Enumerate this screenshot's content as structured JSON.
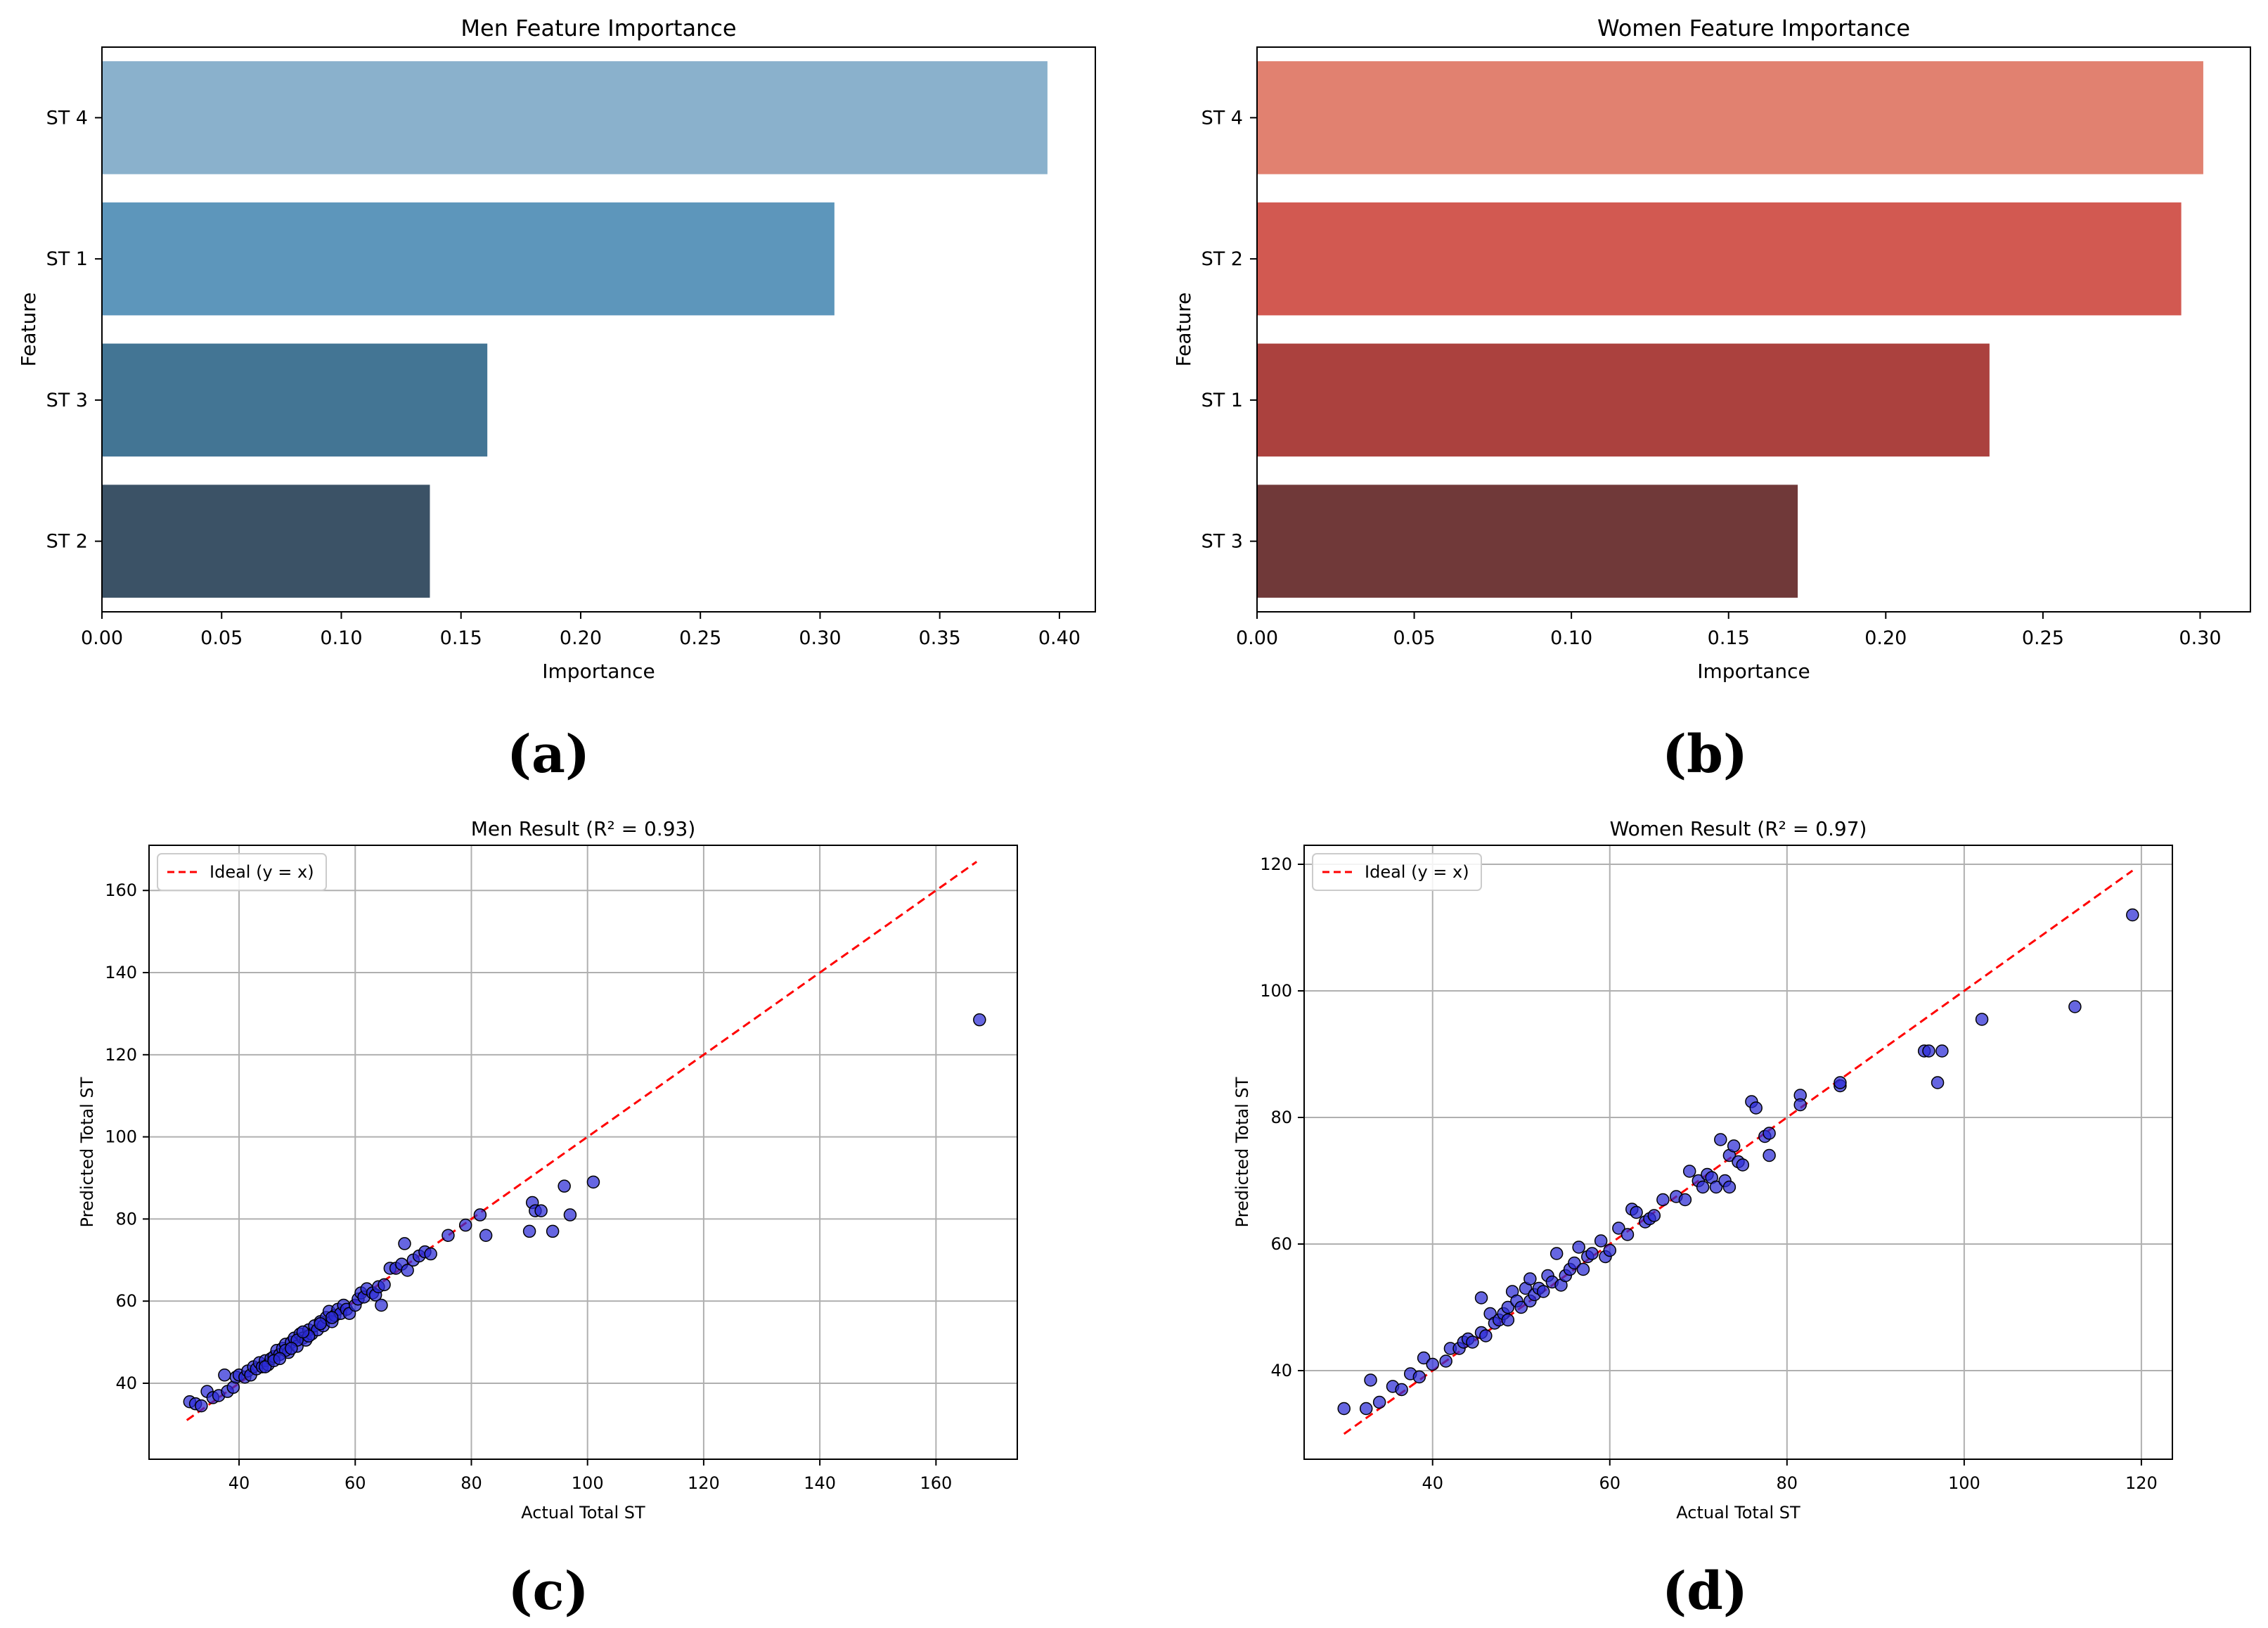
{
  "chart_data": [
    {
      "id": "a",
      "type": "bar",
      "orientation": "horizontal",
      "title": "Men Feature Importance",
      "xlabel": "Importance",
      "ylabel": "Feature",
      "categories": [
        "ST 4",
        "ST 1",
        "ST 3",
        "ST 2"
      ],
      "values": [
        0.395,
        0.306,
        0.161,
        0.137
      ],
      "colors": [
        "#8ab1cc",
        "#5d96bb",
        "#437594",
        "#3b5266"
      ],
      "xlim": [
        0,
        0.415
      ],
      "xticks": [
        0.0,
        0.05,
        0.1,
        0.15,
        0.2,
        0.25,
        0.3,
        0.35,
        0.4
      ],
      "xtick_labels": [
        "0.00",
        "0.05",
        "0.10",
        "0.15",
        "0.20",
        "0.25",
        "0.30",
        "0.35",
        "0.40"
      ],
      "grid": false,
      "caption": "(a)"
    },
    {
      "id": "b",
      "type": "bar",
      "orientation": "horizontal",
      "title": "Women Feature Importance",
      "xlabel": "Importance",
      "ylabel": "Feature",
      "categories": [
        "ST 4",
        "ST 2",
        "ST 1",
        "ST 3"
      ],
      "values": [
        0.301,
        0.294,
        0.233,
        0.172
      ],
      "colors": [
        "#e18170",
        "#d25951",
        "#ab413e",
        "#703939"
      ],
      "xlim": [
        0,
        0.316
      ],
      "xticks": [
        0.0,
        0.05,
        0.1,
        0.15,
        0.2,
        0.25,
        0.3
      ],
      "xtick_labels": [
        "0.00",
        "0.05",
        "0.10",
        "0.15",
        "0.20",
        "0.25",
        "0.30"
      ],
      "grid": false,
      "caption": "(b)"
    },
    {
      "id": "c",
      "type": "scatter",
      "title": "Men Result (R² = 0.93)",
      "xlabel": "Actual Total ST",
      "ylabel": "Predicted Total ST",
      "xlim": [
        24.5,
        174
      ],
      "ylim": [
        21.5,
        171
      ],
      "xticks": [
        40,
        60,
        80,
        100,
        120,
        140,
        160
      ],
      "yticks": [
        40,
        60,
        80,
        100,
        120,
        140,
        160
      ],
      "grid": true,
      "legend": {
        "label": "Ideal (y = x)",
        "position": "upper-left"
      },
      "ideal_line": {
        "x": [
          31,
          167
        ],
        "y": [
          31,
          167
        ],
        "color": "#ff0000"
      },
      "point_color": "#2b2bd6",
      "points": [
        [
          31.5,
          35.5
        ],
        [
          32.5,
          35
        ],
        [
          33.5,
          34.5
        ],
        [
          34.5,
          38
        ],
        [
          35.5,
          36.5
        ],
        [
          36.5,
          37
        ],
        [
          37.5,
          42
        ],
        [
          38,
          38
        ],
        [
          39,
          39
        ],
        [
          39.5,
          41.5
        ],
        [
          40,
          42
        ],
        [
          41,
          41.5
        ],
        [
          41.5,
          43
        ],
        [
          42,
          42
        ],
        [
          42.5,
          44
        ],
        [
          43,
          43.5
        ],
        [
          43.5,
          45
        ],
        [
          44,
          44
        ],
        [
          44.5,
          45.5
        ],
        [
          45,
          44.5
        ],
        [
          45.5,
          46
        ],
        [
          46,
          46.5
        ],
        [
          46.5,
          48
        ],
        [
          47,
          47
        ],
        [
          47.5,
          48.5
        ],
        [
          48,
          49.5
        ],
        [
          48.5,
          47.5
        ],
        [
          49,
          50
        ],
        [
          49.5,
          51
        ],
        [
          50,
          49
        ],
        [
          50.5,
          52
        ],
        [
          51,
          51
        ],
        [
          51.5,
          50.5
        ],
        [
          52,
          53
        ],
        [
          52.5,
          52
        ],
        [
          53,
          54
        ],
        [
          53.5,
          53
        ],
        [
          54,
          55
        ],
        [
          54.5,
          54
        ],
        [
          55,
          56
        ],
        [
          55.5,
          57.5
        ],
        [
          56,
          55
        ],
        [
          56.5,
          56.5
        ],
        [
          57,
          58
        ],
        [
          57.5,
          57
        ],
        [
          58,
          59
        ],
        [
          58.5,
          58
        ],
        [
          59,
          57
        ],
        [
          60,
          59
        ],
        [
          60.5,
          60.5
        ],
        [
          61,
          62
        ],
        [
          61.5,
          61
        ],
        [
          62,
          63
        ],
        [
          63,
          62
        ],
        [
          63.5,
          61.5
        ],
        [
          64,
          63.5
        ],
        [
          64.5,
          59
        ],
        [
          65,
          64
        ],
        [
          66,
          68
        ],
        [
          67,
          68
        ],
        [
          68,
          69
        ],
        [
          68.5,
          74
        ],
        [
          69,
          67.5
        ],
        [
          70,
          70
        ],
        [
          71,
          71
        ],
        [
          72,
          72
        ],
        [
          73,
          71.5
        ],
        [
          76,
          76
        ],
        [
          79,
          78.5
        ],
        [
          81.5,
          81
        ],
        [
          82.5,
          76
        ],
        [
          90,
          77
        ],
        [
          90.5,
          84
        ],
        [
          91,
          82
        ],
        [
          92,
          82
        ],
        [
          94,
          77
        ],
        [
          96,
          88
        ],
        [
          97,
          81
        ],
        [
          101,
          89
        ],
        [
          167.5,
          128.5
        ],
        [
          44.5,
          44
        ],
        [
          46,
          45.5
        ],
        [
          48,
          48
        ],
        [
          50,
          50.5
        ],
        [
          52,
          51.5
        ],
        [
          54,
          54.5
        ],
        [
          56,
          56
        ],
        [
          47,
          46
        ],
        [
          49,
          48.5
        ],
        [
          51,
          52.5
        ]
      ],
      "caption": "(c)"
    },
    {
      "id": "d",
      "type": "scatter",
      "title": "Women Result (R² = 0.97)",
      "xlabel": "Actual Total ST",
      "ylabel": "Predicted Total ST",
      "xlim": [
        25.5,
        123.5
      ],
      "ylim": [
        26,
        123
      ],
      "xticks": [
        40,
        60,
        80,
        100,
        120
      ],
      "yticks": [
        40,
        60,
        80,
        100,
        120
      ],
      "grid": true,
      "legend": {
        "label": "Ideal (y = x)",
        "position": "upper-left"
      },
      "ideal_line": {
        "x": [
          30,
          119
        ],
        "y": [
          30,
          119
        ],
        "color": "#ff0000"
      },
      "point_color": "#2b2bd6",
      "points": [
        [
          30,
          34
        ],
        [
          32.5,
          34
        ],
        [
          33,
          38.5
        ],
        [
          34,
          35
        ],
        [
          35.5,
          37.5
        ],
        [
          36.5,
          37
        ],
        [
          37.5,
          39.5
        ],
        [
          38.5,
          39
        ],
        [
          39,
          42
        ],
        [
          40,
          41
        ],
        [
          41.5,
          41.5
        ],
        [
          42,
          43.5
        ],
        [
          43,
          43.5
        ],
        [
          43.5,
          44.5
        ],
        [
          44,
          45
        ],
        [
          44.5,
          44.5
        ],
        [
          45.5,
          46
        ],
        [
          45.5,
          51.5
        ],
        [
          46,
          45.5
        ],
        [
          46.5,
          49
        ],
        [
          47,
          47.5
        ],
        [
          47.5,
          48
        ],
        [
          48,
          49
        ],
        [
          48.5,
          50
        ],
        [
          48.5,
          48
        ],
        [
          49,
          52.5
        ],
        [
          49.5,
          51
        ],
        [
          50,
          50
        ],
        [
          50.5,
          53
        ],
        [
          51,
          51
        ],
        [
          51,
          54.5
        ],
        [
          51.5,
          52
        ],
        [
          52,
          53
        ],
        [
          52.5,
          52.5
        ],
        [
          53,
          55
        ],
        [
          53.5,
          54
        ],
        [
          54,
          58.5
        ],
        [
          54.5,
          53.5
        ],
        [
          55,
          55
        ],
        [
          55.5,
          56
        ],
        [
          56,
          57
        ],
        [
          56.5,
          59.5
        ],
        [
          57,
          56
        ],
        [
          57.5,
          58
        ],
        [
          58,
          58.5
        ],
        [
          59,
          60.5
        ],
        [
          59.5,
          58
        ],
        [
          60,
          59
        ],
        [
          61,
          62.5
        ],
        [
          62,
          61.5
        ],
        [
          62.5,
          65.5
        ],
        [
          63,
          65
        ],
        [
          64,
          63.5
        ],
        [
          64.5,
          64
        ],
        [
          65,
          64.5
        ],
        [
          66,
          67
        ],
        [
          67.5,
          67.5
        ],
        [
          68.5,
          67
        ],
        [
          69,
          71.5
        ],
        [
          70,
          70
        ],
        [
          70.5,
          69
        ],
        [
          71,
          71
        ],
        [
          71.5,
          70.5
        ],
        [
          72,
          69
        ],
        [
          72.5,
          76.5
        ],
        [
          73,
          70
        ],
        [
          73.5,
          69
        ],
        [
          73.5,
          74
        ],
        [
          74,
          75.5
        ],
        [
          74.5,
          73
        ],
        [
          75,
          72.5
        ],
        [
          76,
          82.5
        ],
        [
          76.5,
          81.5
        ],
        [
          77.5,
          77
        ],
        [
          78,
          74
        ],
        [
          78,
          77.5
        ],
        [
          81.5,
          83.5
        ],
        [
          81.5,
          82
        ],
        [
          86,
          85
        ],
        [
          86,
          85.5
        ],
        [
          95.5,
          90.5
        ],
        [
          96,
          90.5
        ],
        [
          97,
          85.5
        ],
        [
          97.5,
          90.5
        ],
        [
          102,
          95.5
        ],
        [
          112.5,
          97.5
        ],
        [
          119,
          112
        ]
      ],
      "caption": "(d)"
    }
  ]
}
